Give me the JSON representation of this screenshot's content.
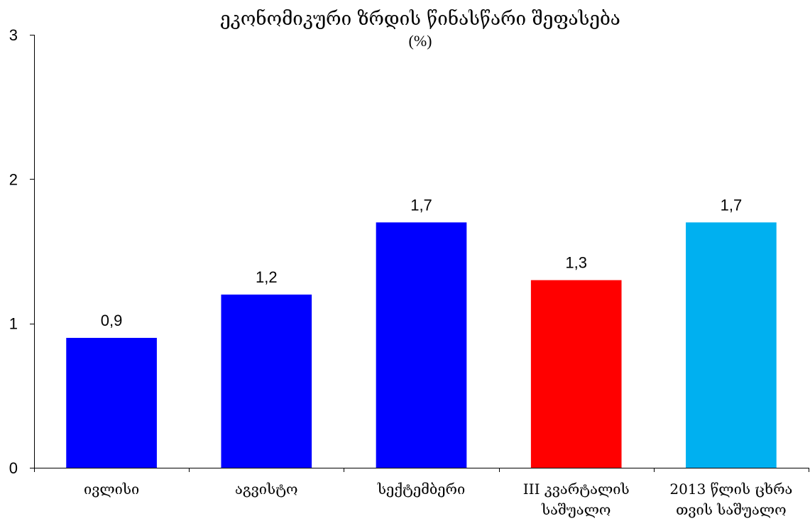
{
  "chart_data": {
    "type": "bar",
    "title": "ეკონომიკური ზრდის წინასწარი შეფასება",
    "subtitle": "(%)",
    "categories": [
      [
        "ივლისი"
      ],
      [
        "აგვისტო"
      ],
      [
        "სექტემბერი"
      ],
      [
        "III კვარტალის",
        "საშუალო"
      ],
      [
        "2013 წლის ცხრა",
        "თვის საშუალო"
      ]
    ],
    "values": [
      0.9,
      1.2,
      1.7,
      1.3,
      1.7
    ],
    "data_labels": [
      "0,9",
      "1,2",
      "1,7",
      "1,3",
      "1,7"
    ],
    "bar_colors": [
      "#0000ff",
      "#0000ff",
      "#0000ff",
      "#ff0000",
      "#00b0f0"
    ],
    "ylim": [
      0,
      3
    ],
    "yticks": [
      0,
      1,
      2,
      3
    ],
    "ytick_labels": [
      "0",
      "1",
      "2",
      "3"
    ],
    "xlabel": "",
    "ylabel": "",
    "grid": false,
    "legend": "none"
  }
}
